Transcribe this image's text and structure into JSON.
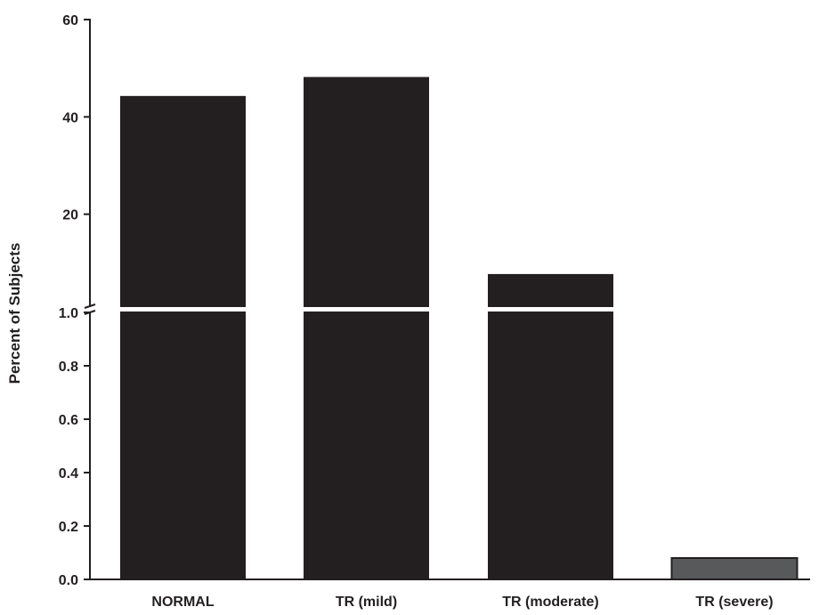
{
  "chart_data": {
    "type": "bar",
    "title": "",
    "xlabel": "",
    "ylabel": "Percent of Subjects",
    "categories": [
      "NORMAL",
      "TR (mild)",
      "TR (moderate)",
      "TR (severe)"
    ],
    "values": [
      44.3,
      48.2,
      7.7,
      0.08
    ],
    "axis_breaks": {
      "lower": {
        "ylim": [
          0,
          1.0
        ],
        "ticks": [
          "0.0",
          "0.2",
          "0.4",
          "0.6",
          "0.8",
          "1.0"
        ]
      },
      "upper": {
        "ylim": [
          0,
          60
        ],
        "ticks": [
          "20",
          "40",
          "60"
        ]
      }
    },
    "bar_colors": [
      "#231f20",
      "#231f20",
      "#231f20",
      "#58595b"
    ],
    "axis_color": "#231f20",
    "grid": false,
    "legend": "none"
  }
}
